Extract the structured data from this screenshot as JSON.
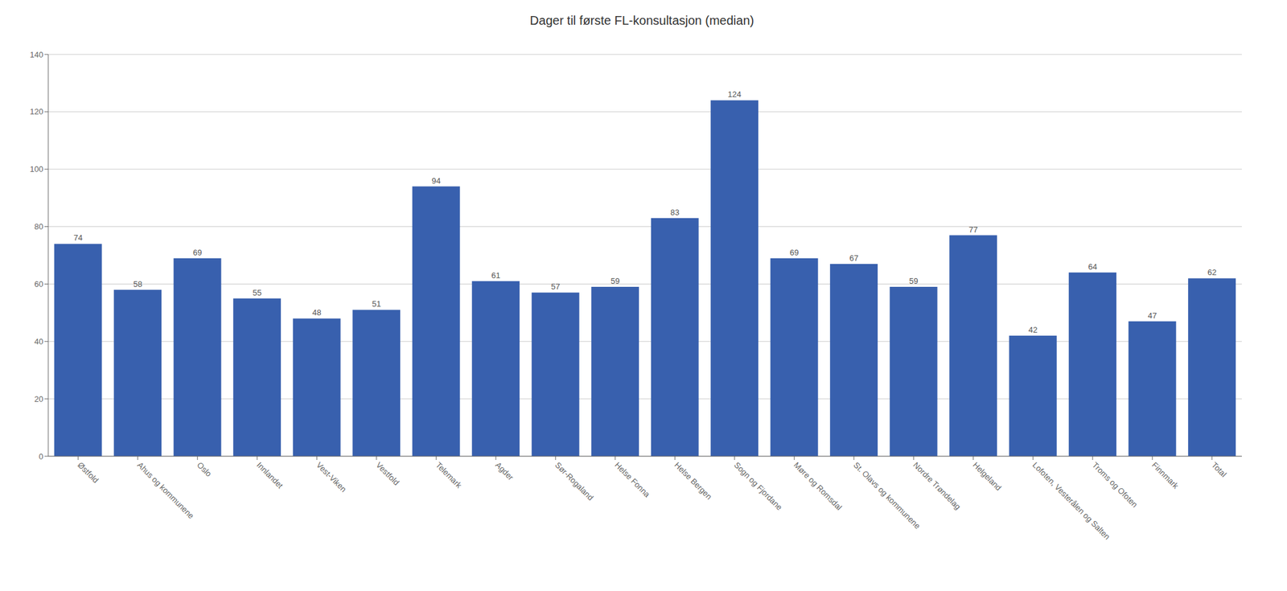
{
  "chart_data": {
    "type": "bar",
    "title": "Dager til første FL-konsultasjon (median)",
    "categories": [
      "Østfold",
      "Ahus og kommunene",
      "Oslo",
      "Innlandet",
      "Vest-Viken",
      "Vestfold",
      "Telemark",
      "Agder",
      "Sør-Rogaland",
      "Helse Fonna",
      "Helse Bergen",
      "Sogn og Fjordane",
      "Møre og Romsdal",
      "St. Olavs og kommunene",
      "Nordre Trøndelag",
      "Helgeland",
      "Lofoten, Vesterålen og Salten",
      "Troms og Ofoten",
      "Finnmark",
      "Total"
    ],
    "values": [
      74,
      58,
      69,
      55,
      48,
      51,
      94,
      61,
      57,
      59,
      83,
      124,
      69,
      67,
      59,
      77,
      42,
      64,
      47,
      62
    ],
    "color": "#3860ae",
    "ylim": [
      0,
      140
    ],
    "yticks": [
      0,
      20,
      40,
      60,
      80,
      100,
      120,
      140
    ],
    "grid": true,
    "data_labels": true
  }
}
